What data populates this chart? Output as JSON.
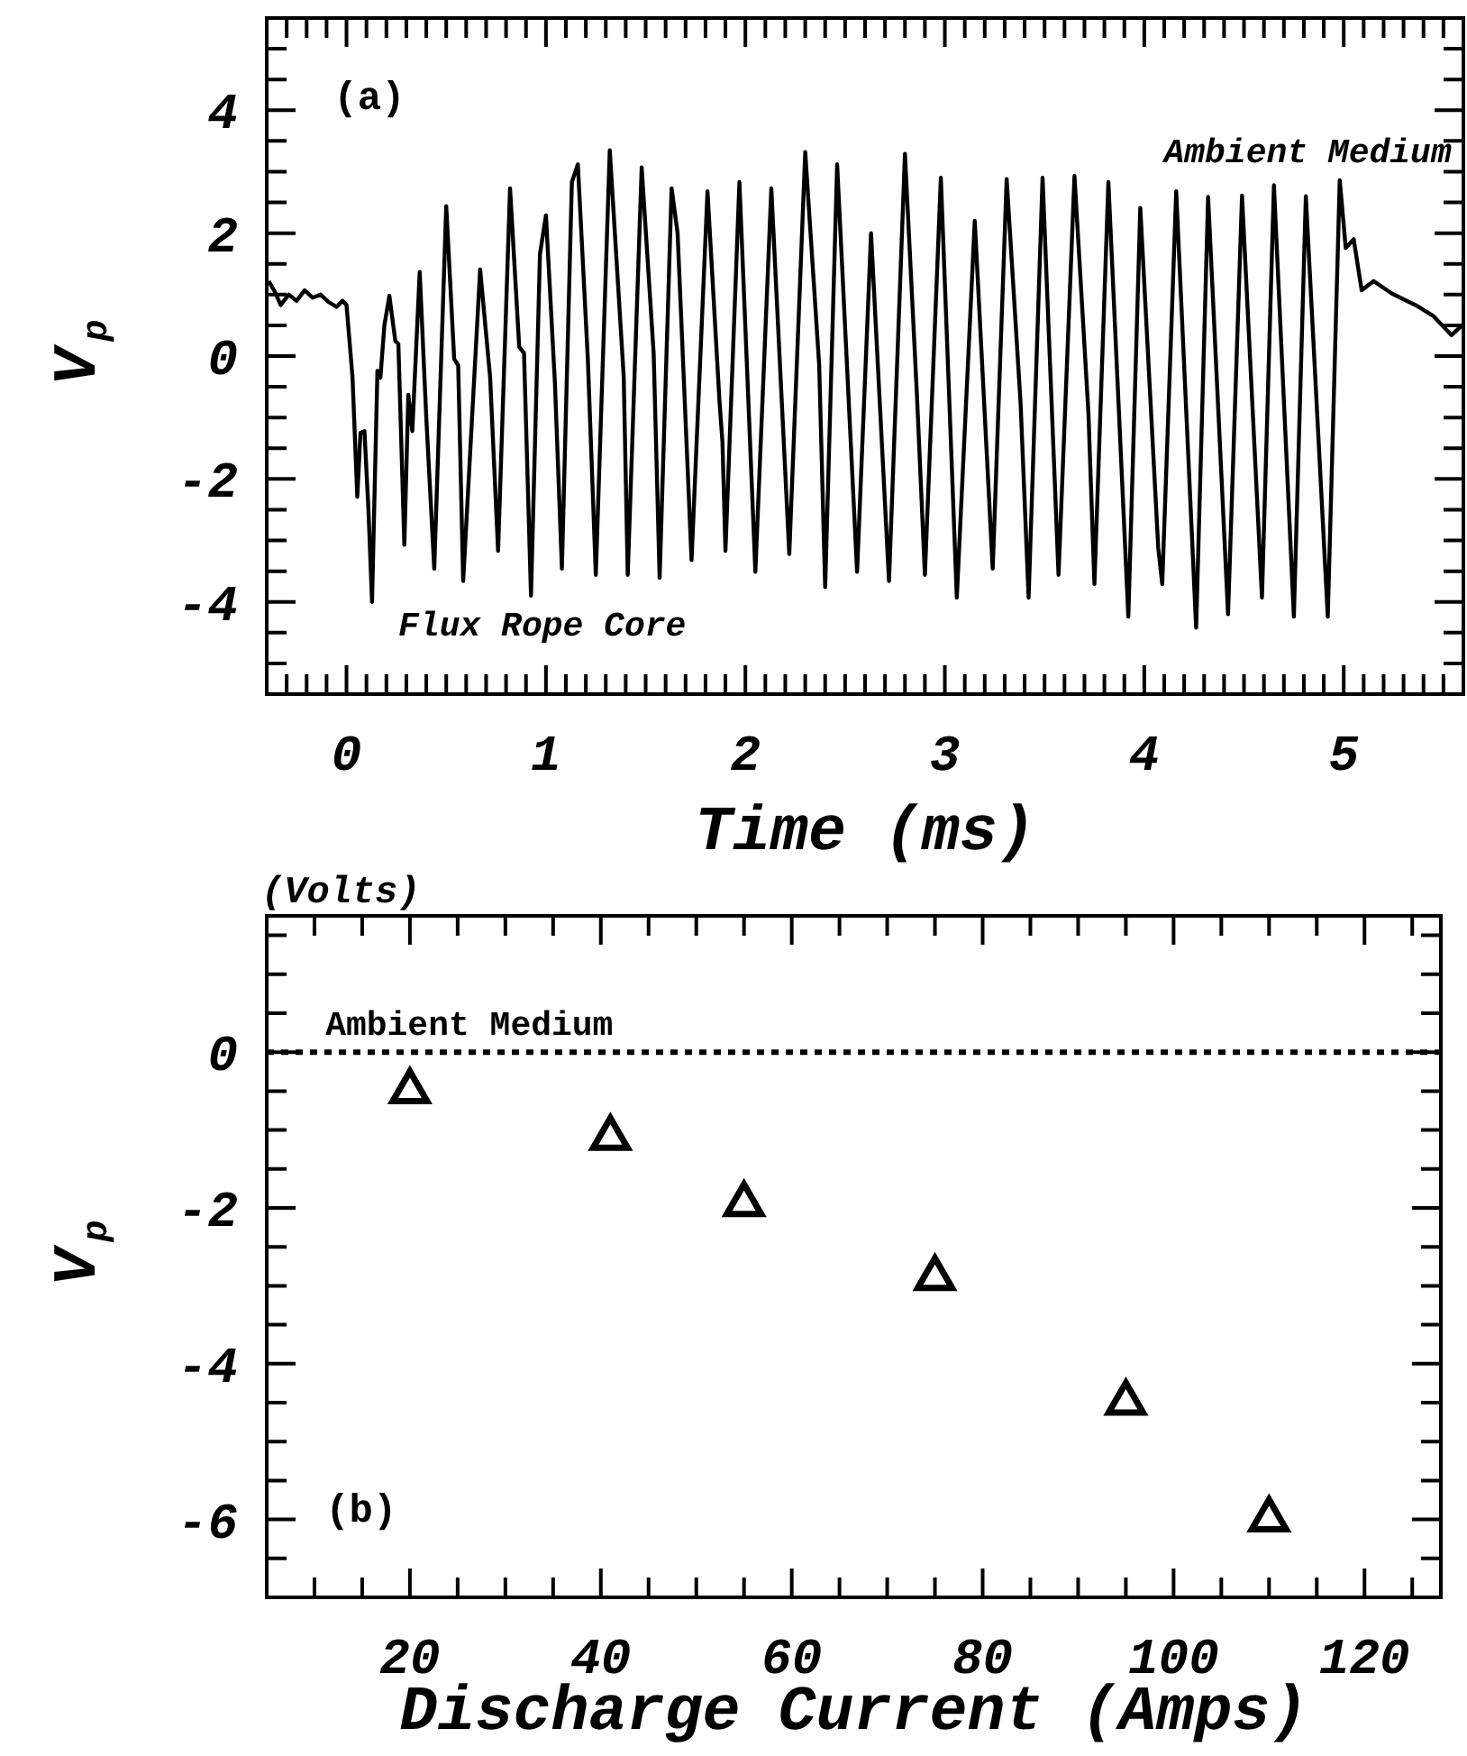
{
  "chart_data": [
    {
      "type": "line",
      "xlabel": "Time (ms)",
      "ylabel": "V$_{p}$",
      "annotations": [
        "(a)",
        "Ambient Medium",
        "Flux Rope Core"
      ],
      "color": "#000000",
      "marker": "none",
      "line_style": "solid",
      "x": [
        -0.39,
        -0.36,
        -0.33,
        -0.29,
        -0.25,
        -0.21,
        -0.17,
        -0.13,
        -0.09,
        -0.05,
        -0.02,
        0,
        0.03,
        0.054,
        0.07,
        0.09,
        0.11,
        0.128,
        0.155,
        0.17,
        0.19,
        0.215,
        0.245,
        0.26,
        0.29,
        0.31,
        0.33,
        0.367,
        0.4,
        0.44,
        0.5,
        0.54,
        0.56,
        0.585,
        0.67,
        0.72,
        0.76,
        0.82,
        0.866,
        0.89,
        0.925,
        0.97,
        1.0,
        1.045,
        1.08,
        1.13,
        1.16,
        1.21,
        1.25,
        1.32,
        1.39,
        1.41,
        1.48,
        1.54,
        1.57,
        1.63,
        1.66,
        1.73,
        1.81,
        1.87,
        1.885,
        1.9,
        1.97,
        2.05,
        2.13,
        2.22,
        2.3,
        2.37,
        2.4,
        2.46,
        2.56,
        2.63,
        2.72,
        2.8,
        2.86,
        2.9,
        2.98,
        3.06,
        3.15,
        3.24,
        3.31,
        3.38,
        3.42,
        3.49,
        3.57,
        3.65,
        3.72,
        3.75,
        3.82,
        3.92,
        3.98,
        4.07,
        4.09,
        4.16,
        4.26,
        4.32,
        4.42,
        4.49,
        4.59,
        4.65,
        4.75,
        4.81,
        4.92,
        4.98,
        5.01,
        5.05,
        5.09,
        5.15,
        5.24,
        5.36,
        5.45,
        5.54,
        5.59
      ],
      "values": [
        1.22,
        1.05,
        0.83,
        1.0,
        0.9,
        1.07,
        0.95,
        1.0,
        0.88,
        0.8,
        0.9,
        0.83,
        -0.34,
        -2.29,
        -1.25,
        -1.22,
        -2.5,
        -4.0,
        -0.24,
        -0.35,
        0.5,
        0.98,
        0.24,
        0.2,
        -3.07,
        -0.63,
        -1.22,
        1.37,
        -1.0,
        -3.46,
        2.44,
        -0.05,
        -0.15,
        -3.66,
        1.41,
        -0.34,
        -3.17,
        2.73,
        0.15,
        0.05,
        -3.9,
        1.66,
        2.29,
        -0.44,
        -3.46,
        2.83,
        3.12,
        -0.05,
        -3.56,
        3.35,
        -0.34,
        -3.56,
        3.07,
        0.05,
        -3.61,
        2.73,
        2.0,
        -3.32,
        2.68,
        -0.73,
        -1.4,
        -3.17,
        2.83,
        -3.51,
        2.73,
        -3.22,
        3.32,
        -0.15,
        -3.76,
        3.12,
        -3.51,
        2.0,
        -3.66,
        3.29,
        -0.63,
        -3.56,
        2.9,
        -3.93,
        2.2,
        -3.46,
        2.88,
        -0.78,
        -3.93,
        2.9,
        -3.56,
        2.93,
        -0.93,
        -3.71,
        2.83,
        -4.24,
        2.41,
        -3.12,
        -3.71,
        2.68,
        -4.42,
        2.59,
        -4.2,
        2.61,
        -3.93,
        2.78,
        -4.24,
        2.6,
        -4.24,
        2.86,
        1.76,
        1.9,
        1.07,
        1.22,
        1.02,
        0.83,
        0.65,
        0.34,
        0.49
      ],
      "xlim": [
        -0.4,
        5.6
      ],
      "ylim": [
        -5.5,
        5.5
      ],
      "xticks": [
        {
          "value": -0.3,
          "label": null
        },
        {
          "value": -0.2,
          "label": null
        },
        {
          "value": -0.1,
          "label": null
        },
        0,
        {
          "value": 0.1,
          "label": null
        },
        {
          "value": 0.2,
          "label": null
        },
        {
          "value": 0.3,
          "label": null
        },
        {
          "value": 0.4,
          "label": null
        },
        {
          "value": 0.5,
          "label": null
        },
        {
          "value": 0.6,
          "label": null
        },
        {
          "value": 0.7,
          "label": null
        },
        {
          "value": 0.8,
          "label": null
        },
        {
          "value": 0.9,
          "label": null
        },
        1,
        {
          "value": 1.1,
          "label": null
        },
        {
          "value": 1.2,
          "label": null
        },
        {
          "value": 1.3,
          "label": null
        },
        {
          "value": 1.4,
          "label": null
        },
        {
          "value": 1.5,
          "label": null
        },
        {
          "value": 1.6,
          "label": null
        },
        {
          "value": 1.7,
          "label": null
        },
        {
          "value": 1.8,
          "label": null
        },
        {
          "value": 1.9,
          "label": null
        },
        2,
        {
          "value": 2.1,
          "label": null
        },
        {
          "value": 2.2,
          "label": null
        },
        {
          "value": 2.3,
          "label": null
        },
        {
          "value": 2.4,
          "label": null
        },
        {
          "value": 2.5,
          "label": null
        },
        {
          "value": 2.6,
          "label": null
        },
        {
          "value": 2.7,
          "label": null
        },
        {
          "value": 2.8,
          "label": null
        },
        {
          "value": 2.9,
          "label": null
        },
        3,
        {
          "value": 3.1,
          "label": null
        },
        {
          "value": 3.2,
          "label": null
        },
        {
          "value": 3.3,
          "label": null
        },
        {
          "value": 3.4,
          "label": null
        },
        {
          "value": 3.5,
          "label": null
        },
        {
          "value": 3.6,
          "label": null
        },
        {
          "value": 3.7,
          "label": null
        },
        {
          "value": 3.8,
          "label": null
        },
        {
          "value": 3.9,
          "label": null
        },
        4,
        {
          "value": 4.1,
          "label": null
        },
        {
          "value": 4.2,
          "label": null
        },
        {
          "value": 4.3,
          "label": null
        },
        {
          "value": 4.4,
          "label": null
        },
        {
          "value": 4.5,
          "label": null
        },
        {
          "value": 4.6,
          "label": null
        },
        {
          "value": 4.7,
          "label": null
        },
        {
          "value": 4.8,
          "label": null
        },
        {
          "value": 4.9,
          "label": null
        },
        5,
        {
          "value": 5.1,
          "label": null
        },
        {
          "value": 5.2,
          "label": null
        },
        {
          "value": 5.3,
          "label": null
        },
        {
          "value": 5.4,
          "label": null
        },
        {
          "value": 5.5,
          "label": null
        }
      ],
      "yticks": [
        {
          "value": -5,
          "label": null
        },
        {
          "value": -4.5,
          "label": null
        },
        -4,
        {
          "value": -3.5,
          "label": null
        },
        {
          "value": -3,
          "label": null
        },
        {
          "value": -2.5,
          "label": null
        },
        -2,
        {
          "value": -1.5,
          "label": null
        },
        {
          "value": -1,
          "label": null
        },
        {
          "value": -0.5,
          "label": null
        },
        0,
        {
          "value": 0.5,
          "label": null
        },
        {
          "value": 1,
          "label": null
        },
        {
          "value": 1.5,
          "label": null
        },
        2,
        {
          "value": 2.5,
          "label": null
        },
        {
          "value": 3,
          "label": null
        },
        {
          "value": 3.5,
          "label": null
        },
        4,
        {
          "value": 4.5,
          "label": null
        },
        {
          "value": 5,
          "label": null
        }
      ]
    },
    {
      "type": "scatter",
      "xlabel": "Discharge Current (Amps)",
      "ylabel": "V$_{p}$",
      "annotations": [
        "(Volts)",
        "(b)"
      ],
      "color": "#000000",
      "marker": "triangle",
      "x": [
        20,
        41,
        55,
        75,
        95,
        110
      ],
      "values": [
        -0.5,
        -1.1,
        -1.95,
        -2.9,
        -4.5,
        -6
      ],
      "xlim": [
        5,
        128
      ],
      "ylim": [
        -7,
        1.75
      ],
      "xticks": [
        {
          "value": 10,
          "label": null
        },
        {
          "value": 15,
          "label": null
        },
        20,
        {
          "value": 25,
          "label": null
        },
        {
          "value": 30,
          "label": null
        },
        {
          "value": 35,
          "label": null
        },
        40,
        {
          "value": 45,
          "label": null
        },
        {
          "value": 50,
          "label": null
        },
        {
          "value": 55,
          "label": null
        },
        60,
        {
          "value": 65,
          "label": null
        },
        {
          "value": 70,
          "label": null
        },
        {
          "value": 75,
          "label": null
        },
        80,
        {
          "value": 85,
          "label": null
        },
        {
          "value": 90,
          "label": null
        },
        {
          "value": 95,
          "label": null
        },
        100,
        {
          "value": 105,
          "label": null
        },
        {
          "value": 110,
          "label": null
        },
        {
          "value": 115,
          "label": null
        },
        120,
        {
          "value": 125,
          "label": null
        }
      ],
      "yticks": [
        {
          "value": -6.5,
          "label": null
        },
        -6,
        {
          "value": -5.5,
          "label": null
        },
        {
          "value": -5,
          "label": null
        },
        {
          "value": -4.5,
          "label": null
        },
        -4,
        {
          "value": -3.5,
          "label": null
        },
        {
          "value": -3,
          "label": null
        },
        {
          "value": -2.5,
          "label": null
        },
        -2,
        {
          "value": -1.5,
          "label": null
        },
        {
          "value": -1,
          "label": null
        },
        {
          "value": -0.5,
          "label": null
        },
        0,
        {
          "value": 0.5,
          "label": null
        },
        {
          "value": 1,
          "label": null
        },
        {
          "value": 1.5,
          "label": null
        }
      ],
      "ref_lines": [
        {
          "axis": "y",
          "value": 0,
          "label": "Ambient Medium",
          "line_style": "dotted",
          "color": "#000000"
        }
      ]
    }
  ]
}
